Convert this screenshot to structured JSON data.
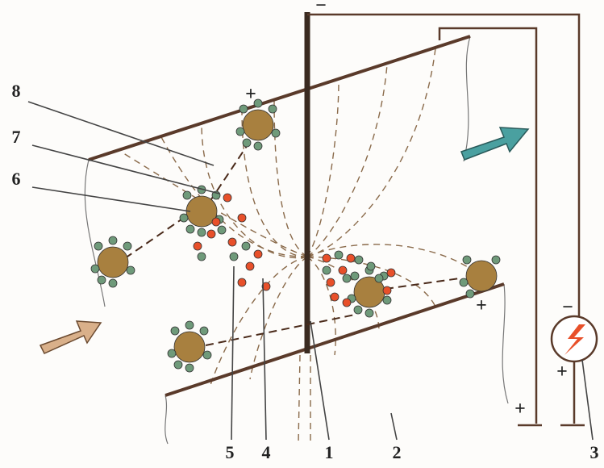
{
  "labels": [
    "8",
    "7",
    "6",
    "5",
    "4",
    "1",
    "2",
    "3"
  ],
  "signs": {
    "electrode": "−",
    "upper_particle": "+",
    "plate_particle": "+",
    "source_minus": "−",
    "source_plus": "+",
    "ground_plus": "+"
  }
}
